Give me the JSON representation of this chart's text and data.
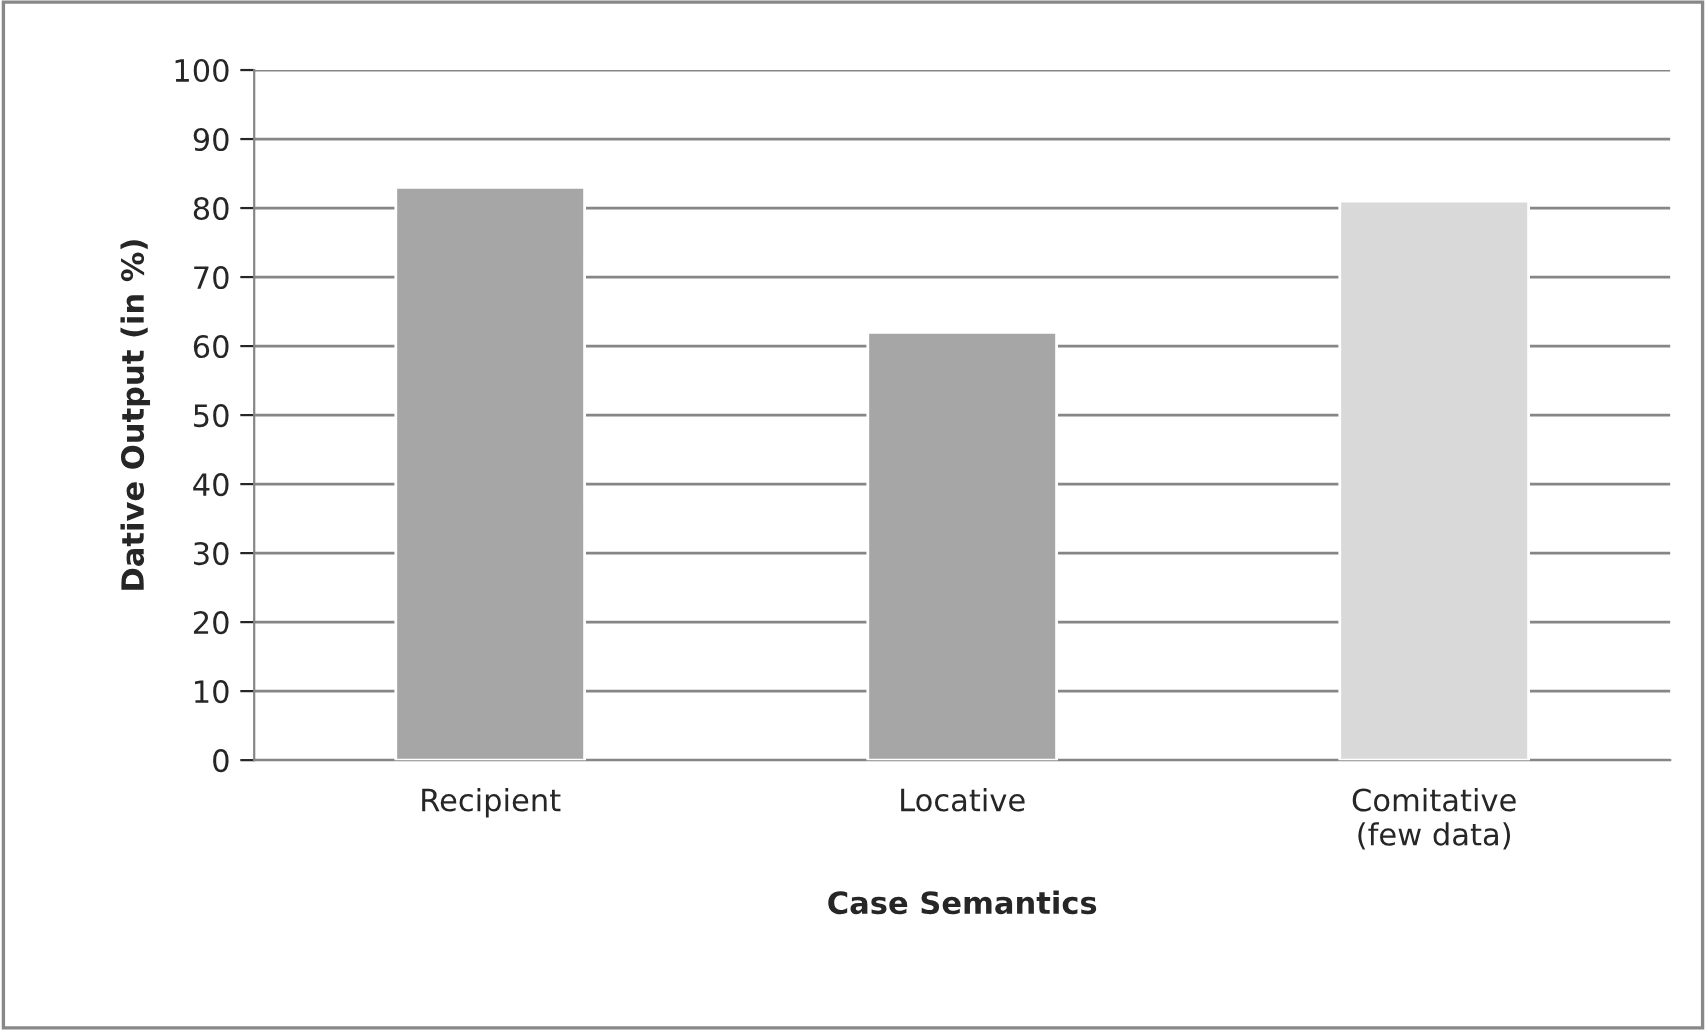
{
  "chart_data": {
    "type": "bar",
    "xlabel": "Case Semantics",
    "ylabel": "Dative Output (in %)",
    "categories": [
      "Recipient",
      "Locative",
      "Comitative\n(few data)"
    ],
    "values": [
      83,
      62,
      81
    ],
    "colors": [
      "#a6a6a6",
      "#a6a6a6",
      "#d9d9d9"
    ],
    "ylim": [
      0,
      100
    ],
    "yticks": [
      0,
      10,
      20,
      30,
      40,
      50,
      60,
      70,
      80,
      90,
      100
    ],
    "grid": "y",
    "legend": false
  }
}
